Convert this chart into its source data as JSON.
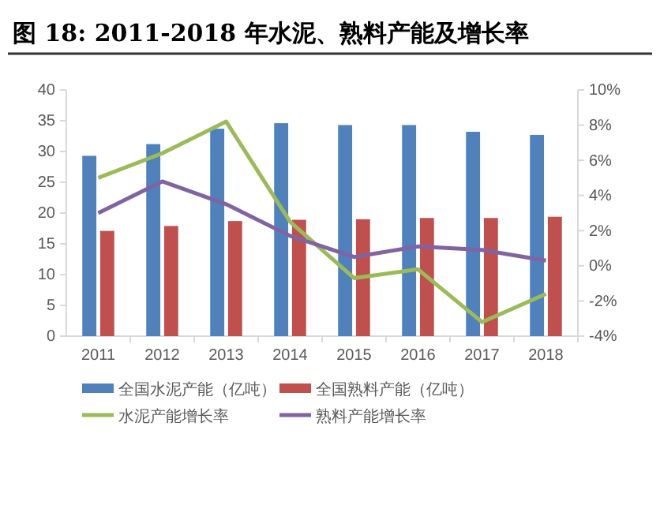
{
  "chart_data": {
    "type": "bar",
    "title": "图 18:  2011-2018 年水泥、熟料产能及增长率",
    "categories": [
      "2011",
      "2012",
      "2013",
      "2014",
      "2015",
      "2016",
      "2017",
      "2018"
    ],
    "series": [
      {
        "name": "全国水泥产能（亿吨）",
        "color": "#4f81bd",
        "values": [
          29.3,
          31.2,
          33.7,
          34.6,
          34.3,
          34.3,
          33.2,
          32.7
        ]
      },
      {
        "name": "全国熟料产能（亿吨）",
        "color": "#c0504d",
        "values": [
          17.1,
          17.9,
          18.7,
          18.9,
          19.0,
          19.2,
          19.2,
          19.4
        ]
      },
      {
        "name": "水泥产能增长率",
        "type": "line",
        "axis": "y2",
        "color": "#9bbb59",
        "values": [
          5.0,
          6.4,
          8.2,
          2.5,
          -0.7,
          -0.2,
          -3.2,
          -1.6
        ]
      },
      {
        "name": "熟料产能增长率",
        "type": "line",
        "axis": "y2",
        "color": "#8064a2",
        "values": [
          3.0,
          4.8,
          3.5,
          1.7,
          0.5,
          1.1,
          0.9,
          0.3
        ]
      }
    ],
    "ylim": [
      0,
      40
    ],
    "yticks": [
      0,
      5,
      10,
      15,
      20,
      25,
      30,
      35,
      40
    ],
    "y2lim": [
      -4,
      10
    ],
    "y2ticks": [
      {
        "value": -4,
        "label": "-4%"
      },
      {
        "value": -2,
        "label": "-2%"
      },
      {
        "value": 0,
        "label": "0%"
      },
      {
        "value": 2,
        "label": "2%"
      },
      {
        "value": 4,
        "label": "4%"
      },
      {
        "value": 6,
        "label": "6%"
      },
      {
        "value": 8,
        "label": "8%"
      },
      {
        "value": 10,
        "label": "10%"
      }
    ],
    "grid": false,
    "legend": "bottom",
    "marker": "none",
    "line_style": "solid"
  }
}
